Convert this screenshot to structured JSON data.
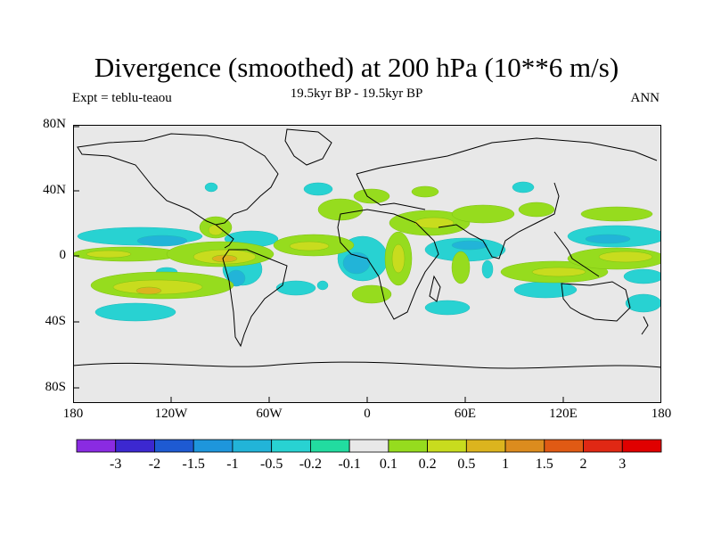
{
  "title": "Divergence (smoothed) at 200 hPa (10**6 m/s)",
  "subtitle_left": "Expt = teblu-teaou",
  "subtitle_center": "19.5kyr BP - 19.5kyr BP",
  "subtitle_right": "ANN",
  "y_ticks": [
    "80N",
    "40N",
    "0",
    "40S",
    "80S"
  ],
  "x_ticks": [
    "180",
    "120W",
    "60W",
    "0",
    "60E",
    "120E",
    "180"
  ],
  "colorbar": {
    "labels": [
      "-3",
      "-2",
      "-1.5",
      "-1",
      "-0.5",
      "-0.2",
      "-0.1",
      "0.1",
      "0.2",
      "0.5",
      "1",
      "1.5",
      "2",
      "3"
    ],
    "colors": [
      "#8a2be2",
      "#3c28d0",
      "#1e5ad2",
      "#1e96dc",
      "#22b4d8",
      "#28d2d2",
      "#22dca0",
      "#e8e8e8",
      "#96dc1e",
      "#c8dc1e",
      "#dcb41e",
      "#dc8c1e",
      "#e05a14",
      "#e02814",
      "#e00000"
    ]
  },
  "colors": {
    "background": "#e8e8e8",
    "coast": "#000000"
  }
}
